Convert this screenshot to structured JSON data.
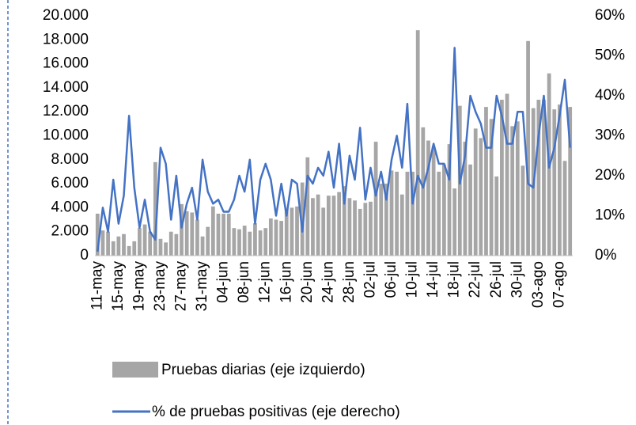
{
  "chart_data": {
    "type": "bar-line",
    "categories": [
      "11-may",
      null,
      null,
      null,
      "15-may",
      null,
      null,
      null,
      "19-may",
      null,
      null,
      null,
      "23-may",
      null,
      null,
      null,
      "27-may",
      null,
      null,
      null,
      "31-may",
      null,
      null,
      null,
      "04-jun",
      null,
      null,
      null,
      "08-jun",
      null,
      null,
      null,
      "12-jun",
      null,
      null,
      null,
      "16-jun",
      null,
      null,
      null,
      "20-jun",
      null,
      null,
      null,
      "24-jun",
      null,
      null,
      null,
      "28-jun",
      null,
      null,
      null,
      "02-jul",
      null,
      null,
      null,
      "06-jul",
      null,
      null,
      null,
      "10-jul",
      null,
      null,
      null,
      "14-jul",
      null,
      null,
      null,
      "18-jul",
      null,
      null,
      null,
      "22-jul",
      null,
      null,
      null,
      "26-jul",
      null,
      null,
      null,
      "30-jul",
      null,
      null,
      null,
      "03-ago",
      null,
      null,
      null,
      "07-ago",
      null,
      null
    ],
    "series": [
      {
        "name": "Pruebas diarias (eje izquierdo)",
        "type": "bar",
        "color": "#a6a6a6",
        "values": [
          3500,
          2100,
          2000,
          1200,
          1600,
          1800,
          800,
          1200,
          2300,
          2600,
          2000,
          7800,
          1400,
          1100,
          2000,
          1800,
          4300,
          3700,
          3600,
          3000,
          1600,
          2400,
          4100,
          3500,
          3500,
          3500,
          2300,
          2200,
          2500,
          2000,
          2700,
          2100,
          2300,
          3100,
          3000,
          2900,
          3900,
          4000,
          4100,
          6100,
          8200,
          4800,
          5100,
          4000,
          5000,
          5000,
          5300,
          5800,
          4800,
          4600,
          3900,
          4400,
          4500,
          9500,
          6000,
          6000,
          7100,
          7000,
          5100,
          7000,
          7000,
          18800,
          10700,
          9600,
          9100,
          7000,
          7600,
          9300,
          5600,
          12500,
          9500,
          7600,
          10600,
          9800,
          12400,
          11400,
          6600,
          13000,
          13500,
          10800,
          11200,
          7500,
          17900,
          12300,
          13000,
          13000,
          15200,
          12200,
          12600,
          7900,
          12400
        ]
      },
      {
        "name": "% de pruebas positivas (eje derecho)",
        "type": "line",
        "axis": "y2",
        "color": "#4472c4",
        "values": [
          1,
          12,
          6,
          19,
          8,
          15,
          35,
          17,
          7,
          14,
          6,
          4,
          27,
          23,
          9,
          20,
          7,
          13,
          17,
          9,
          24,
          16,
          13,
          14,
          11,
          11,
          14,
          20,
          16,
          24,
          8,
          19,
          23,
          19,
          10,
          18,
          10,
          19,
          18,
          6,
          20,
          18,
          22,
          20,
          26,
          17,
          28,
          13,
          25,
          19,
          32,
          14,
          22,
          15,
          21,
          14,
          24,
          30,
          22,
          38,
          13,
          20,
          17,
          22,
          28,
          23,
          23,
          19,
          52,
          18,
          25,
          40,
          36,
          33,
          27,
          27,
          40,
          35,
          28,
          28,
          36,
          36,
          18,
          17,
          30,
          40,
          22,
          27,
          35,
          44,
          27
        ]
      }
    ],
    "ylim": [
      0,
      20000
    ],
    "yticks": [
      0,
      {
        "value": 2000,
        "label": "2.000"
      },
      {
        "value": 4000,
        "label": "4.000"
      },
      {
        "value": 6000,
        "label": "6.000"
      },
      {
        "value": 8000,
        "label": "8.000"
      },
      {
        "value": 10000,
        "label": "10.000"
      },
      {
        "value": 12000,
        "label": "12.000"
      },
      {
        "value": 14000,
        "label": "14.000"
      },
      {
        "value": 16000,
        "label": "16.000"
      },
      {
        "value": 18000,
        "label": "18.000"
      },
      {
        "value": 20000,
        "label": "20.000"
      }
    ],
    "y2lim": [
      0,
      60
    ],
    "y2ticks": [
      {
        "value": 0,
        "label": "0%"
      },
      {
        "value": 10,
        "label": "10%"
      },
      {
        "value": 20,
        "label": "20%"
      },
      {
        "value": 30,
        "label": "30%"
      },
      {
        "value": 40,
        "label": "40%"
      },
      {
        "value": 50,
        "label": "50%"
      },
      {
        "value": 60,
        "label": "60%"
      }
    ],
    "legend": "bottom"
  }
}
